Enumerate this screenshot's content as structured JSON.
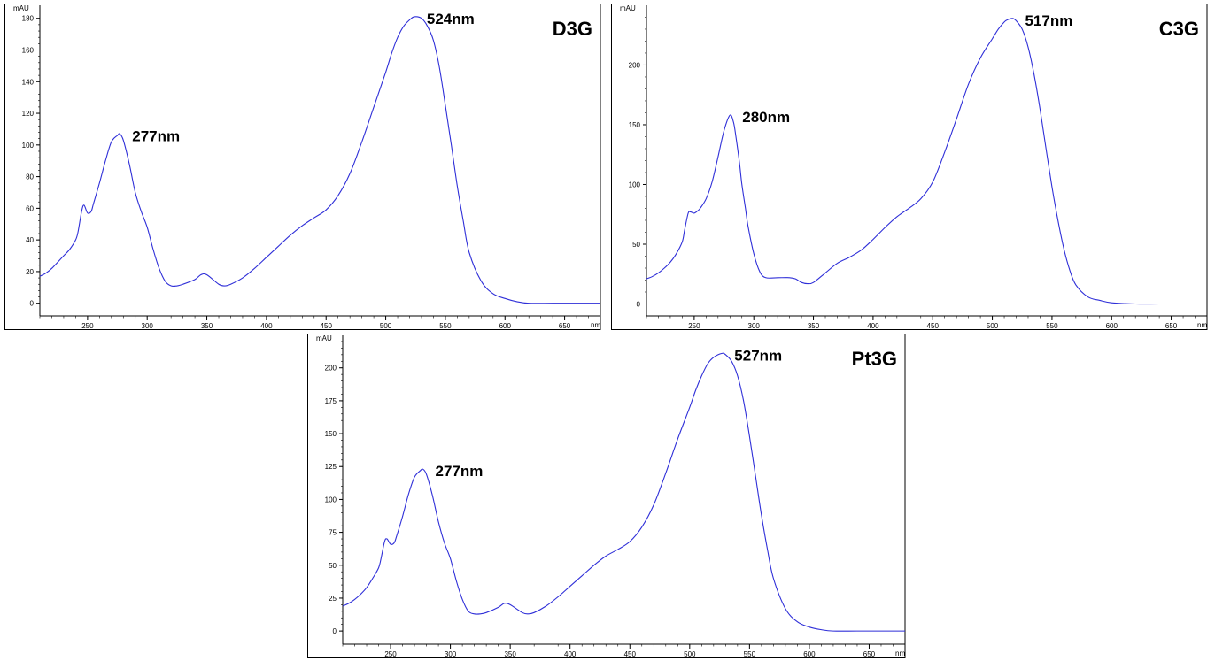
{
  "chart_data": [
    {
      "type": "line",
      "title": "D3G",
      "xunit": "nm",
      "yunit": "mAU",
      "xlim": [
        210,
        680
      ],
      "ylim": [
        -8,
        186
      ],
      "xticks": [
        250,
        300,
        350,
        400,
        450,
        500,
        550,
        600,
        650
      ],
      "yticks": [
        0,
        20,
        40,
        60,
        80,
        100,
        120,
        140,
        160,
        180
      ],
      "color": "#2f2fd8",
      "peaks": [
        {
          "x": 277,
          "y": 107,
          "label": "277nm"
        },
        {
          "x": 524,
          "y": 181,
          "label": "524nm"
        }
      ],
      "series": [
        {
          "x": [
            210,
            215,
            220,
            225,
            230,
            235,
            240,
            242,
            245,
            247,
            250,
            253,
            255,
            260,
            265,
            270,
            275,
            277,
            280,
            285,
            290,
            295,
            300,
            305,
            310,
            315,
            320,
            325,
            330,
            340,
            345,
            350,
            360,
            365,
            370,
            380,
            390,
            400,
            410,
            420,
            430,
            440,
            450,
            460,
            470,
            480,
            490,
            500,
            505,
            510,
            515,
            520,
            524,
            530,
            535,
            540,
            545,
            550,
            555,
            560,
            565,
            570,
            580,
            590,
            600,
            610,
            620,
            640,
            660,
            680
          ],
          "y": [
            17,
            19,
            22,
            26,
            30,
            34,
            40,
            45,
            58,
            62,
            57,
            58,
            63,
            76,
            90,
            102,
            106,
            107,
            103,
            88,
            70,
            58,
            48,
            34,
            22,
            14,
            11,
            11,
            12,
            15,
            18,
            18,
            12,
            11,
            12,
            16,
            22,
            29,
            36,
            43,
            49,
            54,
            59,
            68,
            82,
            102,
            124,
            146,
            158,
            168,
            175,
            179,
            181,
            180,
            175,
            166,
            149,
            125,
            100,
            74,
            52,
            32,
            14,
            6,
            3,
            1,
            0,
            0,
            0,
            0
          ]
        }
      ]
    },
    {
      "type": "line",
      "title": "C3G",
      "xunit": "nm",
      "yunit": "mAU",
      "xlim": [
        210,
        680
      ],
      "ylim": [
        -10,
        247
      ],
      "xticks": [
        250,
        300,
        350,
        400,
        450,
        500,
        550,
        600,
        650
      ],
      "yticks": [
        0,
        50,
        100,
        150,
        200
      ],
      "color": "#2f2fd8",
      "peaks": [
        {
          "x": 280,
          "y": 158,
          "label": "280nm"
        },
        {
          "x": 517,
          "y": 239,
          "label": "517nm"
        }
      ],
      "series": [
        {
          "x": [
            210,
            215,
            220,
            225,
            230,
            235,
            240,
            242,
            245,
            247,
            250,
            253,
            255,
            260,
            265,
            270,
            275,
            280,
            283,
            285,
            288,
            290,
            293,
            295,
            300,
            305,
            310,
            320,
            330,
            335,
            340,
            345,
            350,
            360,
            370,
            380,
            390,
            400,
            410,
            420,
            430,
            440,
            450,
            460,
            470,
            480,
            490,
            500,
            505,
            510,
            513,
            517,
            520,
            525,
            530,
            535,
            540,
            545,
            550,
            555,
            560,
            565,
            570,
            580,
            590,
            600,
            620,
            640,
            660,
            680
          ],
          "y": [
            21,
            23,
            26,
            30,
            35,
            42,
            52,
            62,
            76,
            77,
            76,
            78,
            80,
            88,
            102,
            123,
            145,
            158,
            152,
            140,
            118,
            100,
            80,
            66,
            42,
            27,
            22,
            22,
            22,
            21,
            18,
            17,
            18,
            26,
            34,
            39,
            45,
            54,
            64,
            73,
            80,
            88,
            102,
            127,
            155,
            184,
            206,
            222,
            230,
            236,
            238,
            239,
            237,
            230,
            215,
            192,
            163,
            130,
            98,
            70,
            46,
            28,
            16,
            6,
            3,
            1,
            0,
            0,
            0,
            0
          ]
        }
      ]
    },
    {
      "type": "line",
      "title": "Pt3G",
      "xunit": "nm",
      "yunit": "mAU",
      "xlim": [
        210,
        680
      ],
      "ylim": [
        -10,
        222
      ],
      "xticks": [
        250,
        300,
        350,
        400,
        450,
        500,
        550,
        600,
        650
      ],
      "yticks": [
        0,
        25,
        50,
        75,
        100,
        125,
        150,
        175,
        200
      ],
      "color": "#2f2fd8",
      "peaks": [
        {
          "x": 277,
          "y": 123,
          "label": "277nm"
        },
        {
          "x": 527,
          "y": 211,
          "label": "527nm"
        }
      ],
      "series": [
        {
          "x": [
            210,
            215,
            220,
            225,
            230,
            235,
            240,
            242,
            245,
            247,
            250,
            253,
            255,
            260,
            265,
            270,
            275,
            277,
            280,
            285,
            290,
            295,
            300,
            305,
            310,
            315,
            320,
            325,
            330,
            340,
            345,
            350,
            360,
            365,
            370,
            380,
            390,
            400,
            410,
            420,
            430,
            440,
            450,
            460,
            470,
            480,
            490,
            500,
            505,
            510,
            515,
            520,
            527,
            530,
            535,
            540,
            545,
            550,
            555,
            560,
            565,
            570,
            580,
            590,
            600,
            610,
            620,
            640,
            660,
            680
          ],
          "y": [
            19,
            21,
            24,
            28,
            33,
            40,
            48,
            55,
            68,
            70,
            66,
            67,
            72,
            87,
            104,
            117,
            122,
            123,
            119,
            103,
            83,
            67,
            55,
            38,
            24,
            15,
            13,
            13,
            14,
            18,
            21,
            20,
            14,
            13,
            14,
            19,
            26,
            34,
            42,
            50,
            57,
            62,
            68,
            79,
            96,
            120,
            146,
            170,
            183,
            194,
            203,
            208,
            211,
            210,
            205,
            194,
            175,
            148,
            118,
            88,
            62,
            40,
            17,
            7,
            3,
            1,
            0,
            0,
            0,
            0
          ]
        }
      ]
    }
  ]
}
